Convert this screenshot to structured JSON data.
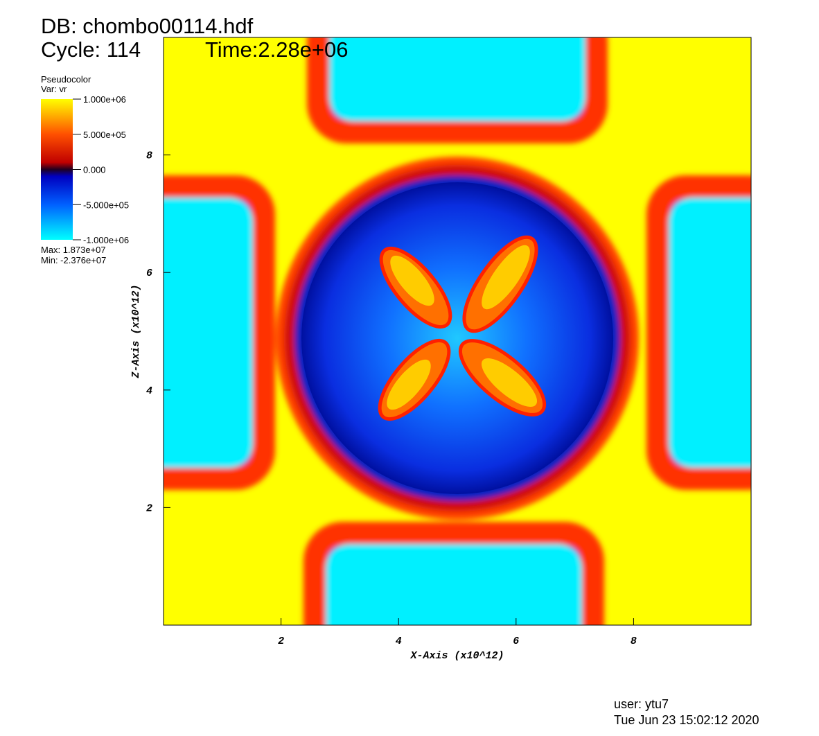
{
  "chart_data": {
    "type": "pseudocolor",
    "header": {
      "db": "DB: chombo00114.hdf",
      "cycle": "Cycle: 114",
      "time": "Time:2.28e+06"
    },
    "xlabel": "X-Axis (x10^12)",
    "ylabel": "Z-Axis (x10^12)",
    "xlim": [
      0,
      10
    ],
    "ylim": [
      0,
      10
    ],
    "xticks": [
      2,
      4,
      6,
      8
    ],
    "yticks": [
      2,
      4,
      6,
      8
    ],
    "colorbar": {
      "title": "Pseudocolor",
      "variable": "Var: vr",
      "lim": [
        -1000000,
        1000000
      ],
      "ticks": [
        {
          "value": 1000000,
          "label": "1.000e+06"
        },
        {
          "value": 500000,
          "label": "5.000e+05"
        },
        {
          "value": 0,
          "label": "0.000"
        },
        {
          "value": -500000,
          "label": "-5.000e+05"
        },
        {
          "value": -1000000,
          "label": "-1.000e+06"
        }
      ],
      "max": "Max:  1.873e+07",
      "min": "Min: -2.376e+07"
    },
    "footer": {
      "user": "user: ytu7",
      "date": "Tue Jun 23 15:02:12 2020"
    }
  }
}
